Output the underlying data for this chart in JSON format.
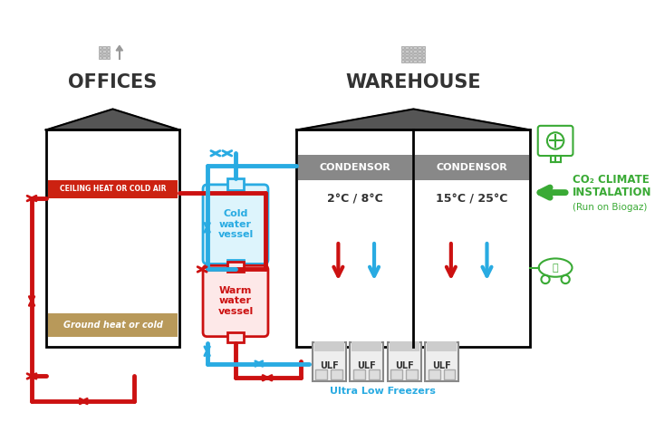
{
  "offices_label": "OFFICES",
  "warehouse_label": "WAREHOUSE",
  "co2_line1": "CO₂ CLIMATE",
  "co2_line2": "INSTALATION",
  "co2_line3": "(Run on Biogaz)",
  "ceiling_label": "CEILING HEAT OR COLD AIR",
  "ground_label": "Ground heat or cold",
  "cold_vessel_label": "Cold\nwater\nvessel",
  "warm_vessel_label": "Warm\nwater\nvessel",
  "condensor_label": "CONDENSOR",
  "temp1": "2°C / 8°C",
  "temp2": "15°C / 25°C",
  "ulf_label": "ULF",
  "freezer_label": "Ultra Low Freezers",
  "red_color": "#cc1111",
  "blue_color": "#29abe2",
  "green_color": "#3aaa35",
  "dark_color": "#333333",
  "ceiling_color": "#cc2211",
  "ground_color": "#b8995a",
  "condensor_bg": "#888888",
  "roof_color": "#555555",
  "bg_color": "#ffffff",
  "pipe_lw": 3.5
}
